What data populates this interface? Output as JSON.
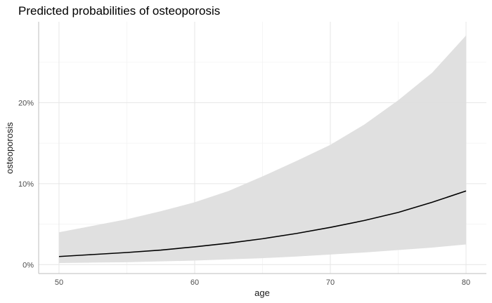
{
  "chart_data": {
    "type": "line",
    "title": "Predicted probabilities of osteoporosis",
    "xlabel": "age",
    "ylabel": "osteoporosis",
    "xlim": [
      48.5,
      81.5
    ],
    "ylim": [
      -1.1,
      30.0
    ],
    "x_ticks": [
      {
        "value": 50,
        "label": "50"
      },
      {
        "value": 60,
        "label": "60"
      },
      {
        "value": 70,
        "label": "70"
      },
      {
        "value": 80,
        "label": "80"
      }
    ],
    "y_ticks": [
      {
        "value": 0,
        "label": "0%"
      },
      {
        "value": 10,
        "label": "10%"
      },
      {
        "value": 20,
        "label": "20%"
      }
    ],
    "grid": true,
    "legend": "none",
    "colors": {
      "line": "#000000",
      "band": "#dedede",
      "grid_major": "#e6e6e6",
      "grid_minor": "#f3f3f3",
      "axis": "#bdbdbd"
    },
    "series": [
      {
        "x": [
          50,
          52.5,
          55,
          57.5,
          60,
          62.5,
          65,
          67.5,
          70,
          72.5,
          75,
          77.5,
          80
        ],
        "y": [
          1.0,
          1.25,
          1.5,
          1.8,
          2.2,
          2.65,
          3.2,
          3.85,
          4.6,
          5.45,
          6.45,
          7.7,
          9.1
        ],
        "lower": [
          0.2,
          0.25,
          0.3,
          0.4,
          0.5,
          0.65,
          0.8,
          1.0,
          1.25,
          1.5,
          1.8,
          2.1,
          2.5
        ],
        "upper": [
          4.0,
          4.8,
          5.6,
          6.6,
          7.7,
          9.1,
          10.9,
          12.8,
          14.8,
          17.3,
          20.3,
          23.7,
          28.3
        ]
      }
    ]
  }
}
